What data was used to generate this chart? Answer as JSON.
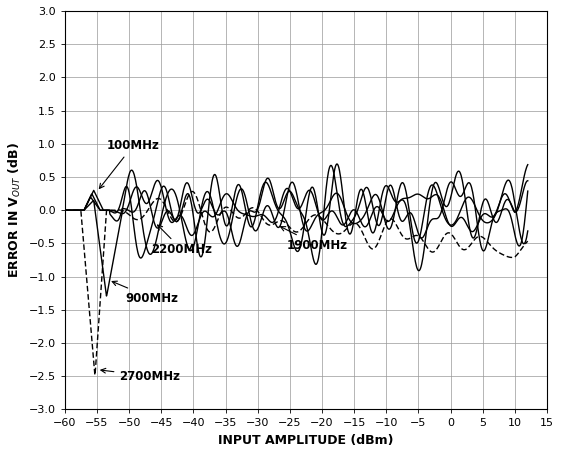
{
  "title": "",
  "xlabel": "INPUT AMPLITUDE (dBm)",
  "ylabel_text": "ERROR IN V$_{OUT}$ (dB)",
  "xlim": [
    -60,
    15
  ],
  "ylim": [
    -3.0,
    3.0
  ],
  "xticks": [
    -60,
    -55,
    -50,
    -45,
    -40,
    -35,
    -30,
    -25,
    -20,
    -15,
    -10,
    -5,
    0,
    5,
    10,
    15
  ],
  "yticks": [
    -3.0,
    -2.5,
    -2.0,
    -1.5,
    -1.0,
    -0.5,
    0.0,
    0.5,
    1.0,
    1.5,
    2.0,
    2.5,
    3.0
  ],
  "background_color": "#ffffff",
  "grid_color": "#999999",
  "figsize": [
    5.61,
    4.54
  ],
  "dpi": 100
}
